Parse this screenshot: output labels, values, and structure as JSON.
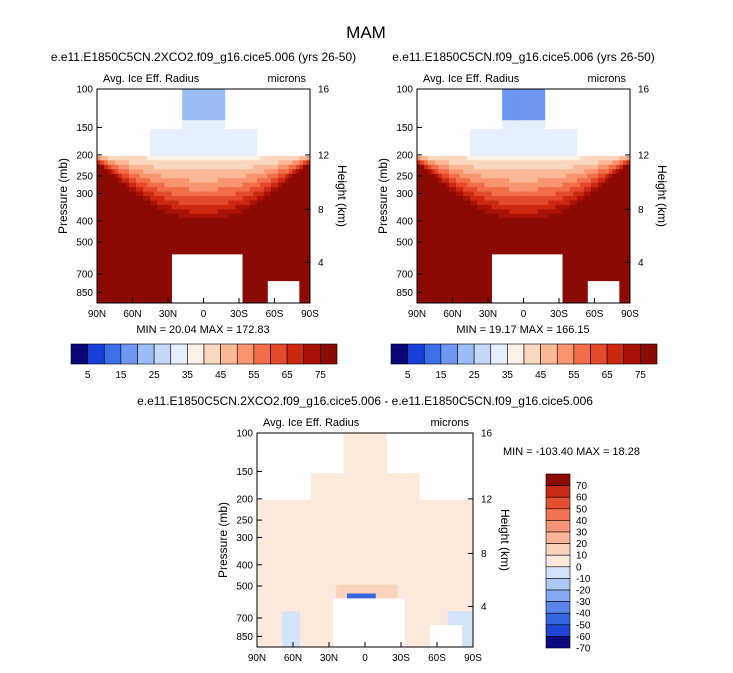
{
  "figure": {
    "title": "MAM"
  },
  "colors": {
    "palette": [
      "#08087a",
      "#1840d8",
      "#3d6fe8",
      "#6d97f0",
      "#9cbcf6",
      "#c4d8fa",
      "#e4eefc",
      "#fdf0e4",
      "#fcd8c0",
      "#fbb896",
      "#f99470",
      "#f26e4a",
      "#e44a2a",
      "#cc2810",
      "#a81008",
      "#8c0a04"
    ],
    "diff_palette": [
      "#0a0a80",
      "#1f45d6",
      "#3566e2",
      "#5a86ec",
      "#86a8f2",
      "#aec8f6",
      "#d2e3fa",
      "#fde9dc",
      "#fbd2bc",
      "#f9b49a",
      "#f79476",
      "#f07452",
      "#e25030",
      "#c82c14",
      "#8c0a04"
    ]
  },
  "chart_data": [
    {
      "type": "heatmap",
      "name": "panel_2xco2",
      "title": "e.e11.E1850C5CN.2XCO2.f09_g16.cice5.006 (yrs 26-50)",
      "subtitle_left": "Avg. Ice Eff. Radius",
      "subtitle_right": "microns",
      "ylabel": "Pressure (mb)",
      "y2label": "Height (km)",
      "xticks": [
        "90N",
        "60N",
        "30N",
        "0",
        "30S",
        "60S",
        "90S"
      ],
      "yticks": [
        "100",
        "150",
        "200",
        "250",
        "300",
        "400",
        "500",
        "700",
        "850"
      ],
      "y2ticks": [
        "16",
        "12",
        "8",
        "4"
      ],
      "stats": "MIN = 20.04  MAX = 172.83",
      "min": 20.04,
      "max": 172.83,
      "colorbar_labels": [
        "5",
        "15",
        "25",
        "35",
        "45",
        "55",
        "65",
        "75"
      ],
      "levels": [
        5,
        10,
        15,
        20,
        25,
        30,
        35,
        40,
        45,
        50,
        55,
        60,
        65,
        70,
        75
      ]
    },
    {
      "type": "heatmap",
      "name": "panel_control",
      "title": "e.e11.E1850C5CN.f09_g16.cice5.006 (yrs 26-50)",
      "subtitle_left": "Avg. Ice Eff. Radius",
      "subtitle_right": "microns",
      "ylabel": "Pressure (mb)",
      "y2label": "Height (km)",
      "xticks": [
        "90N",
        "60N",
        "30N",
        "0",
        "30S",
        "60S",
        "90S"
      ],
      "yticks": [
        "100",
        "150",
        "200",
        "250",
        "300",
        "400",
        "500",
        "700",
        "850"
      ],
      "y2ticks": [
        "16",
        "12",
        "8",
        "4"
      ],
      "stats": "MIN = 19.17  MAX = 166.15",
      "min": 19.17,
      "max": 166.15,
      "colorbar_labels": [
        "5",
        "15",
        "25",
        "35",
        "45",
        "55",
        "65",
        "75"
      ],
      "levels": [
        5,
        10,
        15,
        20,
        25,
        30,
        35,
        40,
        45,
        50,
        55,
        60,
        65,
        70,
        75
      ]
    },
    {
      "type": "heatmap",
      "name": "panel_difference",
      "title": "e.e11.E1850C5CN.2XCO2.f09_g16.cice5.006 - e.e11.E1850C5CN.f09_g16.cice5.006",
      "subtitle_left": "Avg. Ice Eff. Radius",
      "subtitle_right": "microns",
      "ylabel": "Pressure (mb)",
      "y2label": "Height (km)",
      "xticks": [
        "90N",
        "60N",
        "30N",
        "0",
        "30S",
        "60S",
        "90S"
      ],
      "yticks": [
        "100",
        "150",
        "200",
        "250",
        "300",
        "400",
        "500",
        "700",
        "850"
      ],
      "y2ticks": [
        "16",
        "12",
        "8",
        "4"
      ],
      "stats": "MIN = -103.40  MAX =  18.28",
      "min": -103.4,
      "max": 18.28,
      "colorbar_labels": [
        "70",
        "60",
        "50",
        "40",
        "30",
        "20",
        "10",
        "0",
        "-10",
        "-20",
        "-30",
        "-40",
        "-50",
        "-60",
        "-70"
      ],
      "levels": [
        70,
        60,
        50,
        40,
        30,
        20,
        10,
        0,
        -10,
        -20,
        -30,
        -40,
        -50,
        -60,
        -70
      ]
    }
  ]
}
